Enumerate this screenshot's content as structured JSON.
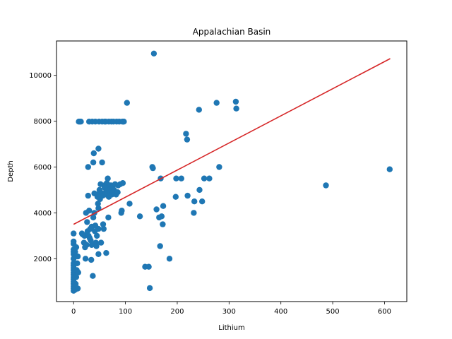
{
  "chart_data": {
    "type": "scatter",
    "title": "Appalachian Basin",
    "xlabel": "Lithium",
    "ylabel": "Depth",
    "xlim": [
      -33,
      643
    ],
    "ylim": [
      130,
      11500
    ],
    "x_ticks": [
      0,
      100,
      200,
      300,
      400,
      500,
      600
    ],
    "y_ticks": [
      2000,
      4000,
      6000,
      8000,
      10000
    ],
    "grid": false,
    "colors": {
      "points": "#1f77b4",
      "trend": "#d62728",
      "axis": "#000000"
    },
    "trend_line": {
      "x": [
        0,
        611
      ],
      "y": [
        3500,
        10730
      ]
    },
    "series": [
      {
        "points": [
          [
            0,
            600
          ],
          [
            0,
            700
          ],
          [
            0,
            800
          ],
          [
            0,
            900
          ],
          [
            0,
            1000
          ],
          [
            0,
            1100
          ],
          [
            0,
            1200
          ],
          [
            0,
            1300
          ],
          [
            0,
            1400
          ],
          [
            0,
            1500
          ],
          [
            0,
            1600
          ],
          [
            0,
            1700
          ],
          [
            0,
            1800
          ],
          [
            0,
            2000
          ],
          [
            0,
            2200
          ],
          [
            0,
            2300
          ],
          [
            0,
            2400
          ],
          [
            0,
            2650
          ],
          [
            0,
            2750
          ],
          [
            0,
            3100
          ],
          [
            3,
            650
          ],
          [
            4,
            900
          ],
          [
            5,
            1200
          ],
          [
            6,
            1500
          ],
          [
            7,
            1800
          ],
          [
            8,
            2100
          ],
          [
            5,
            2500
          ],
          [
            3,
            2300
          ],
          [
            8,
            700
          ],
          [
            9,
            1400
          ],
          [
            10,
            7980
          ],
          [
            12,
            7980
          ],
          [
            14,
            7980
          ],
          [
            16,
            3100
          ],
          [
            18,
            3050
          ],
          [
            20,
            2700
          ],
          [
            21,
            3000
          ],
          [
            22,
            2500
          ],
          [
            23,
            2000
          ],
          [
            24,
            4000
          ],
          [
            25,
            2600
          ],
          [
            26,
            3600
          ],
          [
            27,
            3200
          ],
          [
            28,
            6000
          ],
          [
            28,
            4750
          ],
          [
            29,
            3000
          ],
          [
            30,
            4100
          ],
          [
            30,
            7980
          ],
          [
            31,
            2900
          ],
          [
            32,
            3300
          ],
          [
            33,
            2800
          ],
          [
            34,
            1950
          ],
          [
            35,
            3400
          ],
          [
            35,
            2600
          ],
          [
            36,
            7980
          ],
          [
            37,
            1250
          ],
          [
            38,
            6200
          ],
          [
            38,
            3800
          ],
          [
            39,
            6600
          ],
          [
            40,
            4850
          ],
          [
            40,
            4000
          ],
          [
            41,
            3200
          ],
          [
            42,
            7980
          ],
          [
            42,
            3450
          ],
          [
            43,
            2700
          ],
          [
            44,
            2550
          ],
          [
            45,
            4800
          ],
          [
            45,
            3000
          ],
          [
            46,
            4700
          ],
          [
            47,
            4400
          ],
          [
            48,
            4200
          ],
          [
            48,
            3300
          ],
          [
            48,
            2200
          ],
          [
            48,
            6800
          ],
          [
            49,
            7980
          ],
          [
            50,
            5000
          ],
          [
            51,
            4600
          ],
          [
            52,
            4900
          ],
          [
            52,
            5250
          ],
          [
            53,
            2700
          ],
          [
            55,
            6200
          ],
          [
            55,
            7980
          ],
          [
            56,
            4750
          ],
          [
            57,
            3500
          ],
          [
            58,
            3300
          ],
          [
            59,
            5200
          ],
          [
            60,
            5100
          ],
          [
            60,
            7980
          ],
          [
            61,
            4800
          ],
          [
            62,
            4900
          ],
          [
            62,
            7980
          ],
          [
            63,
            2250
          ],
          [
            64,
            5300
          ],
          [
            65,
            5100
          ],
          [
            66,
            5500
          ],
          [
            67,
            3800
          ],
          [
            68,
            4700
          ],
          [
            68,
            7980
          ],
          [
            69,
            5200
          ],
          [
            70,
            5000
          ],
          [
            71,
            4900
          ],
          [
            72,
            5200
          ],
          [
            73,
            7980
          ],
          [
            74,
            4800
          ],
          [
            75,
            5100
          ],
          [
            76,
            4900
          ],
          [
            77,
            7980
          ],
          [
            78,
            5000
          ],
          [
            80,
            5250
          ],
          [
            82,
            4800
          ],
          [
            83,
            7980
          ],
          [
            85,
            4900
          ],
          [
            86,
            5200
          ],
          [
            88,
            7980
          ],
          [
            90,
            5250
          ],
          [
            92,
            4000
          ],
          [
            93,
            4100
          ],
          [
            94,
            7980
          ],
          [
            95,
            5300
          ],
          [
            96,
            7980
          ],
          [
            97,
            7980
          ],
          [
            103,
            8800
          ],
          [
            108,
            4400
          ],
          [
            128,
            3850
          ],
          [
            138,
            1650
          ],
          [
            145,
            1650
          ],
          [
            147,
            720
          ],
          [
            152,
            6000
          ],
          [
            153,
            5950
          ],
          [
            155,
            10950
          ],
          [
            160,
            4150
          ],
          [
            165,
            3800
          ],
          [
            167,
            2550
          ],
          [
            168,
            5500
          ],
          [
            170,
            3850
          ],
          [
            172,
            3500
          ],
          [
            173,
            4300
          ],
          [
            185,
            2000
          ],
          [
            197,
            4700
          ],
          [
            198,
            5500
          ],
          [
            208,
            5500
          ],
          [
            217,
            7450
          ],
          [
            219,
            7200
          ],
          [
            220,
            4750
          ],
          [
            232,
            4000
          ],
          [
            233,
            4500
          ],
          [
            242,
            8500
          ],
          [
            243,
            5000
          ],
          [
            248,
            4500
          ],
          [
            252,
            5500
          ],
          [
            262,
            5500
          ],
          [
            276,
            8800
          ],
          [
            281,
            6000
          ],
          [
            313,
            8850
          ],
          [
            314,
            8550
          ],
          [
            487,
            5200
          ],
          [
            610,
            5900
          ]
        ]
      }
    ]
  }
}
